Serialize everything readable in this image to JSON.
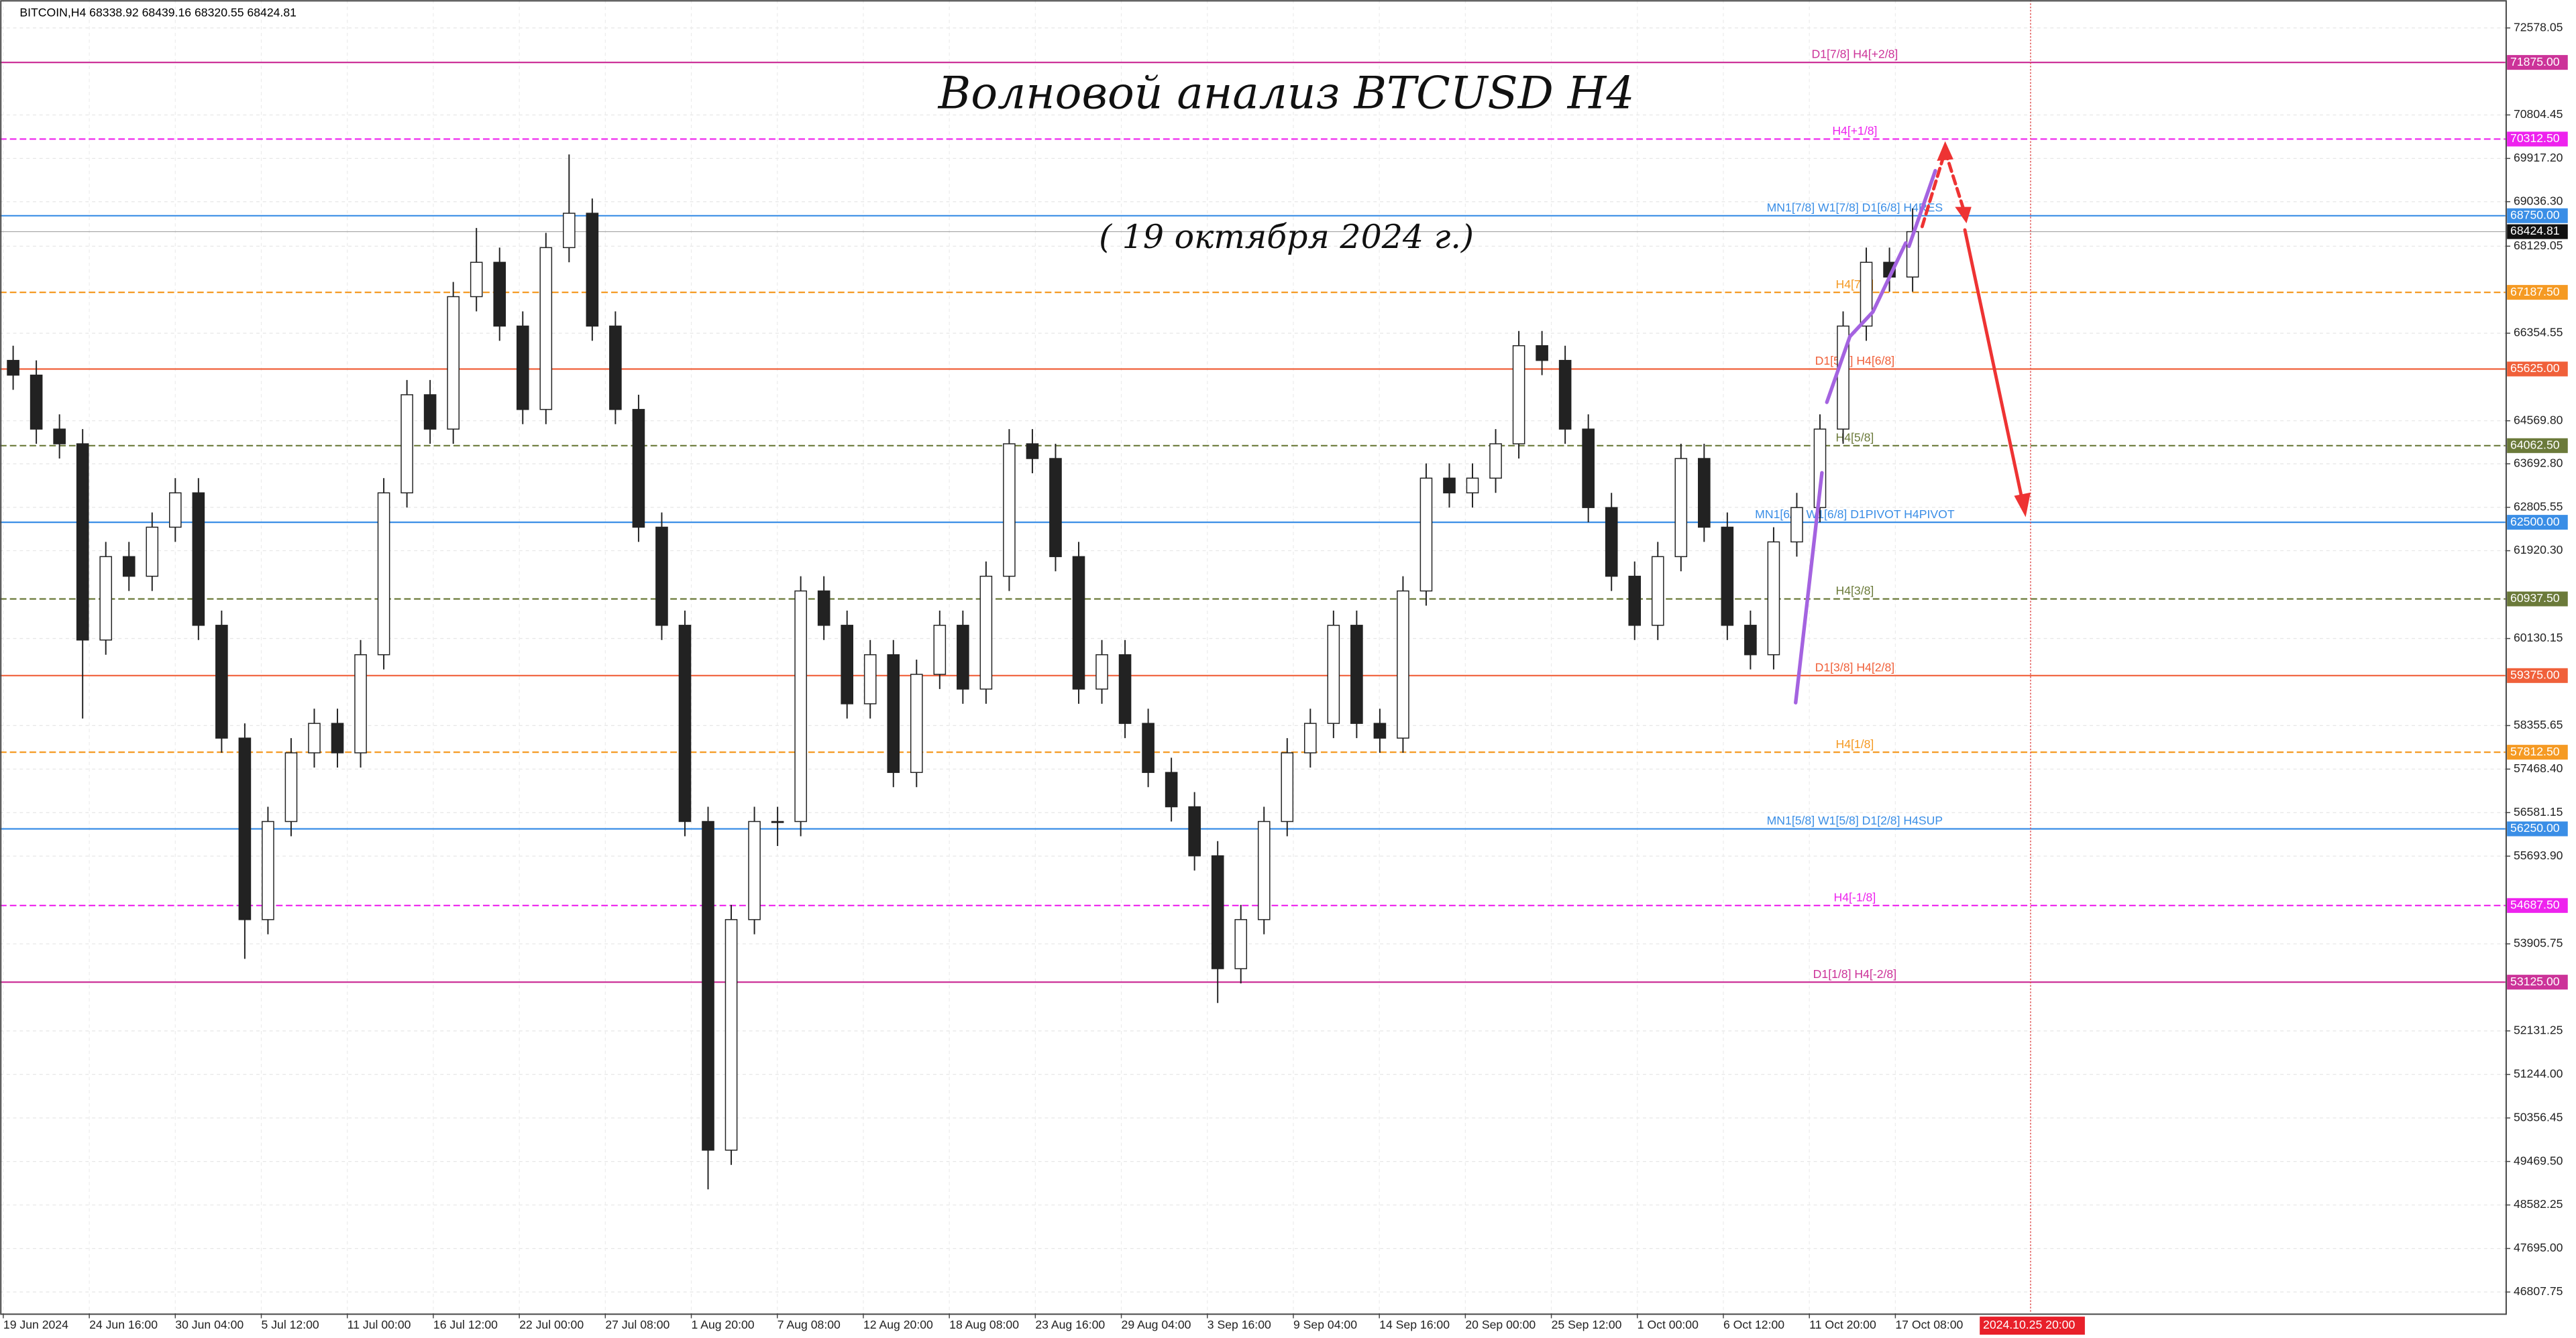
{
  "chart_data": {
    "type": "candlestick",
    "header": "BITCOIN,H4  68338.92 68439.16 68320.55 68424.81",
    "title": "Волновой анализ  BTCUSD H4",
    "subtitle": "( 19 октября 2024 г.)",
    "ylim": [
      46373,
      73147
    ],
    "yticks": [
      {
        "value": 72578.05,
        "label": "72578.05"
      },
      {
        "value": 70804.45,
        "label": "70804.45"
      },
      {
        "value": 69917.2,
        "label": "69917.20"
      },
      {
        "value": 69036.3,
        "label": "69036.30"
      },
      {
        "value": 68129.05,
        "label": "68129.05"
      },
      {
        "value": 66354.55,
        "label": "66354.55"
      },
      {
        "value": 64569.8,
        "label": "64569.80"
      },
      {
        "value": 63692.8,
        "label": "63692.80"
      },
      {
        "value": 62805.55,
        "label": "62805.55"
      },
      {
        "value": 61920.3,
        "label": "61920.30"
      },
      {
        "value": 60130.15,
        "label": "60130.15"
      },
      {
        "value": 58355.65,
        "label": "58355.65"
      },
      {
        "value": 57468.4,
        "label": "57468.40"
      },
      {
        "value": 56581.15,
        "label": "56581.15"
      },
      {
        "value": 55693.9,
        "label": "55693.90"
      },
      {
        "value": 53905.75,
        "label": "53905.75"
      },
      {
        "value": 52131.25,
        "label": "52131.25"
      },
      {
        "value": 51244.0,
        "label": "51244.00"
      },
      {
        "value": 50356.45,
        "label": "50356.45"
      },
      {
        "value": 49469.5,
        "label": "49469.50"
      },
      {
        "value": 48582.25,
        "label": "48582.25"
      },
      {
        "value": 47695.0,
        "label": "47695.00"
      },
      {
        "value": 46807.75,
        "label": "46807.75"
      }
    ],
    "x_labels": [
      "19 Jun 2024",
      "24 Jun 16:00",
      "30 Jun 04:00",
      "5 Jul 12:00",
      "11 Jul 00:00",
      "16 Jul 12:00",
      "22 Jul 00:00",
      "27 Jul 08:00",
      "1 Aug 20:00",
      "7 Aug 08:00",
      "12 Aug 20:00",
      "18 Aug 08:00",
      "23 Aug 16:00",
      "29 Aug 04:00",
      "3 Sep 16:00",
      "9 Sep 04:00",
      "14 Sep 16:00",
      "20 Sep 00:00",
      "25 Sep 12:00",
      "1 Oct 00:00",
      "6 Oct 12:00",
      "11 Oct 20:00",
      "17 Oct 08:00"
    ],
    "cursor_label": "2024.10.25 20:00",
    "candles": {
      "open": [
        65800,
        65500,
        64400,
        64100,
        60100,
        61800,
        61400,
        62400,
        63100,
        60400,
        58100,
        54400,
        56400,
        57800,
        58400,
        57800,
        59800,
        63100,
        65100,
        64400,
        67100,
        67800,
        66500,
        64800,
        68100,
        68800,
        66500,
        64800,
        62400,
        60400,
        56400,
        49700,
        54400,
        56400,
        56400,
        61100,
        60400,
        58800,
        59800,
        57400,
        59400,
        60400,
        59100,
        61400,
        64100,
        63800,
        61800,
        59100,
        59800,
        58400,
        57400,
        56700,
        55700,
        53400,
        54400,
        56400,
        57800,
        58400,
        60400,
        58400,
        58100,
        61100,
        63400,
        63100,
        63400,
        64100,
        66100,
        65800,
        64400,
        62800,
        61400,
        60400,
        61800,
        63800,
        62400,
        60400,
        59800,
        62100,
        62800,
        64400,
        66500,
        67800,
        67500
      ],
      "high": [
        66100,
        65800,
        64700,
        64400,
        62100,
        62100,
        62700,
        63400,
        63400,
        60700,
        58400,
        56700,
        58100,
        58700,
        58700,
        60100,
        63400,
        65400,
        65400,
        67400,
        68500,
        68100,
        66800,
        68400,
        70000,
        69100,
        66800,
        65100,
        62700,
        60700,
        56700,
        54700,
        56700,
        56700,
        61400,
        61400,
        60700,
        60100,
        60100,
        59700,
        60700,
        60700,
        61700,
        64400,
        64400,
        64100,
        62100,
        60100,
        60100,
        58700,
        57700,
        57000,
        56000,
        54700,
        56700,
        58100,
        58700,
        60700,
        60700,
        58700,
        61400,
        63700,
        63700,
        63700,
        64400,
        66400,
        66400,
        66100,
        64700,
        63100,
        61700,
        62100,
        64100,
        64100,
        62700,
        60700,
        62400,
        63100,
        64700,
        66800,
        68100,
        68100,
        68900
      ],
      "low": [
        65200,
        64100,
        63800,
        58500,
        59800,
        61100,
        61100,
        62100,
        60100,
        57800,
        53600,
        54100,
        56100,
        57500,
        57500,
        57500,
        59500,
        62800,
        64100,
        64100,
        66800,
        66200,
        64500,
        64500,
        67800,
        66200,
        64500,
        62100,
        60100,
        56100,
        48900,
        49400,
        54100,
        55900,
        56100,
        60100,
        58500,
        58500,
        57100,
        57100,
        59100,
        58800,
        58800,
        61100,
        63500,
        61500,
        58800,
        58800,
        58100,
        57100,
        56400,
        55400,
        52700,
        53100,
        54100,
        56100,
        57500,
        58100,
        58100,
        57800,
        57800,
        60800,
        62800,
        62800,
        63100,
        63800,
        65500,
        64100,
        62500,
        61100,
        60100,
        60100,
        61500,
        62100,
        60100,
        59500,
        59500,
        61800,
        62500,
        64100,
        66200,
        67200,
        67200
      ],
      "close": [
        65500,
        64400,
        64100,
        60100,
        61800,
        61400,
        62400,
        63100,
        60400,
        58100,
        54400,
        56400,
        57800,
        58400,
        57800,
        59800,
        63100,
        65100,
        64400,
        67100,
        67800,
        66500,
        64800,
        68100,
        68800,
        66500,
        64800,
        62400,
        60400,
        56400,
        49700,
        54400,
        56400,
        56400,
        61100,
        60400,
        58800,
        59800,
        57400,
        59400,
        60400,
        59100,
        61400,
        64100,
        63800,
        61800,
        59100,
        59800,
        58400,
        57400,
        56700,
        55700,
        53400,
        54400,
        56400,
        57800,
        58400,
        60400,
        58400,
        58100,
        61100,
        63400,
        63100,
        63400,
        64100,
        66100,
        65800,
        64400,
        62800,
        61400,
        60400,
        61800,
        63800,
        62400,
        60400,
        59800,
        62100,
        62800,
        64400,
        66500,
        67800,
        67500,
        68424.81
      ]
    },
    "current_price": {
      "value": 68424.81,
      "label": "68424.81"
    },
    "levels": [
      {
        "value": 71875,
        "value_label": "71875.00",
        "label": "D1[7/8] H4[+2/8]",
        "color": "#cc3399",
        "style": "solid"
      },
      {
        "value": 70312.5,
        "value_label": "70312.50",
        "label": "H4[+1/8]",
        "color": "#ee22ee",
        "style": "dashed"
      },
      {
        "value": 68750,
        "value_label": "68750.00",
        "label": "MN1[7/8] W1[7/8] D1[6/8] H4RES",
        "color": "#3a8ee6",
        "style": "solid"
      },
      {
        "value": 67187.5,
        "value_label": "67187.50",
        "label": "H4[7/8]",
        "color": "#f59a23",
        "style": "dashed"
      },
      {
        "value": 65625,
        "value_label": "65625.00",
        "label": "D1[5/8] H4[6/8]",
        "color": "#f0603a",
        "style": "solid"
      },
      {
        "value": 64062.5,
        "value_label": "64062.50",
        "label": "H4[5/8]",
        "color": "#6b7a3a",
        "style": "dashed"
      },
      {
        "value": 62500,
        "value_label": "62500.00",
        "label": "MN1[6/8] W1[6/8] D1PIVOT H4PIVOT",
        "color": "#3a8ee6",
        "style": "solid"
      },
      {
        "value": 60937.5,
        "value_label": "60937.50",
        "label": "H4[3/8]",
        "color": "#6b7a3a",
        "style": "dashed"
      },
      {
        "value": 59375,
        "value_label": "59375.00",
        "label": "D1[3/8] H4[2/8]",
        "color": "#f0603a",
        "style": "solid"
      },
      {
        "value": 57812.5,
        "value_label": "57812.50",
        "label": "H4[1/8]",
        "color": "#f59a23",
        "style": "dashed"
      },
      {
        "value": 56250,
        "value_label": "56250.00",
        "label": "MN1[5/8] W1[5/8] D1[2/8] H4SUP",
        "color": "#3a8ee6",
        "style": "solid"
      },
      {
        "value": 54687.5,
        "value_label": "54687.50",
        "label": "H4[-1/8]",
        "color": "#ee22ee",
        "style": "dashed"
      },
      {
        "value": 53125,
        "value_label": "53125.00",
        "label": "D1[1/8] H4[-2/8]",
        "color": "#cc3399",
        "style": "solid"
      }
    ]
  }
}
